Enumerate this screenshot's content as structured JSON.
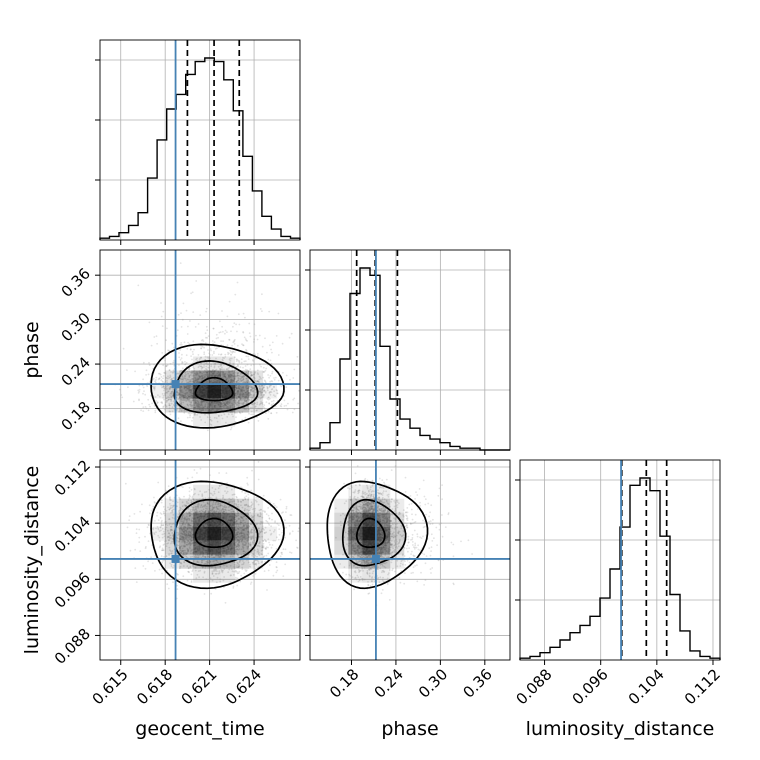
{
  "chart_data": {
    "type": "corner",
    "parameters": [
      "geocent_time",
      "phase",
      "luminosity_distance"
    ],
    "truths": {
      "geocent_time": 0.6187,
      "phase": 0.213,
      "luminosity_distance": 0.0989
    },
    "colors": {
      "truth": "#4682b4",
      "hist": "#000000",
      "grid": "#b0b0b0",
      "scatter": "#9a9a9a"
    },
    "grid": true,
    "axes": {
      "geocent_time": {
        "range": [
          0.6136,
          0.6271
        ],
        "ticks": [
          0.615,
          0.618,
          0.621,
          0.624
        ],
        "tick_labels": [
          "0.615",
          "0.618",
          "0.621",
          "0.624"
        ]
      },
      "phase": {
        "range": [
          0.124,
          0.394
        ],
        "ticks": [
          0.18,
          0.24,
          0.3,
          0.36
        ],
        "tick_labels": [
          "0.18",
          "0.24",
          "0.30",
          "0.36"
        ]
      },
      "luminosity_distance": {
        "range": [
          0.0845,
          0.113
        ],
        "ticks": [
          0.088,
          0.096,
          0.104,
          0.112
        ],
        "tick_labels": [
          "0.088",
          "0.096",
          "0.104",
          "0.112"
        ]
      }
    },
    "hist_1d": {
      "geocent_time": {
        "edges_range": [
          0.6136,
          0.6271
        ],
        "counts": [
          1,
          2,
          4,
          8,
          15,
          34,
          55,
          72,
          80,
          91,
          98,
          100,
          98,
          88,
          71,
          46,
          27,
          13,
          6,
          2,
          1
        ],
        "quantiles": [
          0.6195,
          0.6213,
          0.623
        ]
      },
      "phase": {
        "edges_range": [
          0.124,
          0.394
        ],
        "counts": [
          1,
          4,
          15,
          50,
          86,
          100,
          96,
          57,
          28,
          17,
          12,
          8,
          6,
          4,
          2,
          1,
          1,
          0,
          0,
          0
        ],
        "quantiles": [
          0.187,
          0.212,
          0.242
        ]
      },
      "luminosity_distance": {
        "edges_range": [
          0.0845,
          0.113
        ],
        "counts": [
          1,
          2,
          4,
          7,
          11,
          15,
          19,
          24,
          34,
          50,
          73,
          96,
          100,
          93,
          68,
          36,
          16,
          5,
          2,
          1
        ],
        "quantiles": [
          0.099,
          0.1025,
          0.1054
        ]
      }
    },
    "contour_levels": [
      "1σ",
      "1.5σ",
      "2σ"
    ],
    "pairs": [
      {
        "x": "geocent_time",
        "y": "phase",
        "center": [
          0.6213,
          0.203
        ],
        "skew": "long tail toward higher phase"
      },
      {
        "x": "geocent_time",
        "y": "luminosity_distance",
        "center": [
          0.6213,
          0.1025
        ]
      },
      {
        "x": "phase",
        "y": "luminosity_distance",
        "center": [
          0.204,
          0.1025
        ],
        "skew": "long tail toward higher phase"
      }
    ]
  }
}
